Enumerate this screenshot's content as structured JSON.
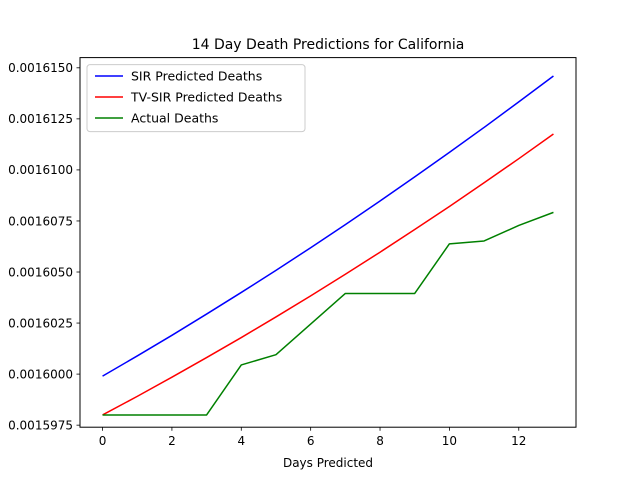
{
  "chart_data": {
    "type": "line",
    "title": "14 Day Death Predictions for California",
    "xlabel": "Days Predicted",
    "ylabel": "",
    "xlim": [
      -0.65,
      13.65
    ],
    "ylim": [
      0.0015974,
      0.0016155
    ],
    "x_ticks": [
      0,
      2,
      4,
      6,
      8,
      10,
      12
    ],
    "y_ticks": [
      0.0015975,
      0.0016,
      0.0016025,
      0.001605,
      0.0016075,
      0.00161,
      0.0016125,
      0.001615
    ],
    "y_tick_labels": [
      "0.0015975",
      "0.0016000",
      "0.0016025",
      "0.0016050",
      "0.0016075",
      "0.0016100",
      "0.0016125",
      "0.0016150"
    ],
    "x": [
      0,
      1,
      2,
      3,
      4,
      5,
      6,
      7,
      8,
      9,
      10,
      11,
      12,
      13
    ],
    "legend_position": "upper-left",
    "grid": false,
    "series": [
      {
        "name": "SIR Predicted Deaths",
        "color": "#0000ff",
        "values": [
          0.0015999,
          0.00160089,
          0.0016019,
          0.00160294,
          0.001604,
          0.00160508,
          0.00160619,
          0.00160732,
          0.00160848,
          0.00160966,
          0.00161086,
          0.00161208,
          0.00161333,
          0.0016146
        ]
      },
      {
        "name": "TV-SIR Predicted Deaths",
        "color": "#ff0000",
        "values": [
          0.001598,
          0.00159891,
          0.00159985,
          0.00160081,
          0.00160179,
          0.0016028,
          0.00160383,
          0.00160489,
          0.00160597,
          0.00160708,
          0.00160821,
          0.00160937,
          0.00161055,
          0.00161176
        ]
      },
      {
        "name": "Actual Deaths",
        "color": "#008000",
        "values": [
          0.001598,
          0.001598,
          0.001598,
          0.001598,
          0.00160045,
          0.00160095,
          0.00160245,
          0.00160395,
          0.00160395,
          0.00160395,
          0.00160638,
          0.00160652,
          0.00160728,
          0.00160792
        ]
      }
    ]
  }
}
